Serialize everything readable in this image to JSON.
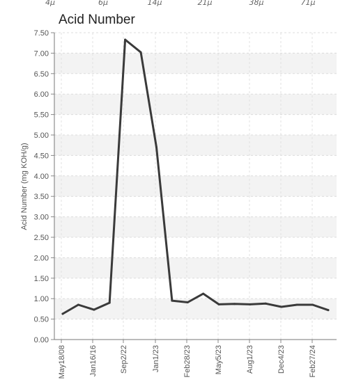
{
  "chart_data": {
    "type": "line",
    "title": "Acid Number",
    "ylabel": "Acid Number (mg KOH/g)",
    "xlabel": "",
    "ylim": [
      0,
      7.5
    ],
    "y_ticks": [
      "0.00",
      "0.50",
      "1.00",
      "1.50",
      "2.00",
      "2.50",
      "3.00",
      "3.50",
      "4.00",
      "4.50",
      "5.00",
      "5.50",
      "6.00",
      "6.50",
      "7.00",
      "7.50"
    ],
    "x_tick_labels": [
      "May18/08",
      "Jan16/16",
      "Sep2/22",
      "Jan1/23",
      "Feb28/23",
      "May5/23",
      "Aug1/23",
      "Dec4/23",
      "Feb27/24"
    ],
    "top_labels": [
      "4μ",
      "6μ",
      "14μ",
      "21μ",
      "38μ",
      "71μ"
    ],
    "grid": true,
    "legend": "none",
    "series": [
      {
        "color": "#3a3a3a",
        "values": [
          0.63,
          0.85,
          0.73,
          0.9,
          7.33,
          7.02,
          4.7,
          0.95,
          0.91,
          1.12,
          0.86,
          0.87,
          0.86,
          0.88,
          0.8,
          0.85,
          0.85,
          0.72
        ]
      }
    ]
  }
}
